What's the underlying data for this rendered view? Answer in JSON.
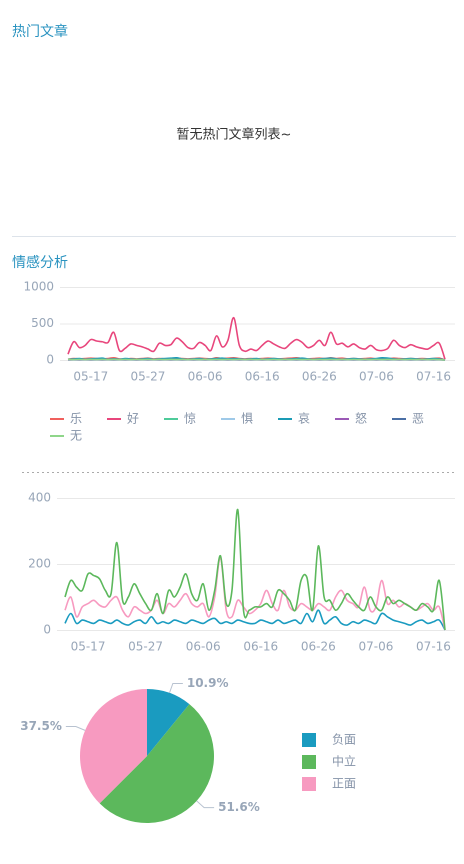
{
  "hot_articles": {
    "title": "热门文章",
    "empty": "暂无热门文章列表~"
  },
  "sentiment": {
    "title": "情感分析"
  },
  "chart_data": [
    {
      "type": "line",
      "categories": [
        null,
        null,
        null,
        null,
        "05-17",
        null,
        null,
        null,
        null,
        null,
        null,
        null,
        null,
        null,
        "05-27",
        null,
        null,
        null,
        null,
        null,
        null,
        null,
        null,
        null,
        "06-06",
        null,
        null,
        null,
        null,
        null,
        null,
        null,
        null,
        null,
        "06-16",
        null,
        null,
        null,
        null,
        null,
        null,
        null,
        null,
        null,
        "06-26",
        null,
        null,
        null,
        null,
        null,
        null,
        null,
        null,
        null,
        "07-06",
        null,
        null,
        null,
        null,
        null,
        null,
        null,
        null,
        null,
        "07-16",
        null,
        null
      ],
      "ylim": [
        0,
        1000
      ],
      "yticks": [
        0,
        500,
        1000
      ],
      "grid": true,
      "legend": "bottom",
      "series": [
        {
          "name": "乐",
          "color": "#f0605d",
          "values": [
            10,
            20,
            15,
            20,
            25,
            20,
            15,
            20,
            30,
            15,
            10,
            20,
            15,
            20,
            25,
            15,
            20,
            15,
            20,
            25,
            20,
            15,
            20,
            25,
            20,
            15,
            30,
            20,
            25,
            30,
            20,
            15,
            20,
            15,
            20,
            25,
            20,
            15,
            20,
            25,
            30,
            20,
            15,
            20,
            25,
            20,
            30,
            20,
            25,
            15,
            20,
            15,
            20,
            25,
            15,
            20,
            15,
            25,
            20,
            15,
            20,
            15,
            20,
            15,
            20,
            25,
            0
          ]
        },
        {
          "name": "好",
          "color": "#e8467c",
          "values": [
            80,
            250,
            170,
            200,
            280,
            260,
            250,
            240,
            380,
            130,
            160,
            220,
            200,
            180,
            150,
            120,
            230,
            200,
            210,
            300,
            250,
            170,
            160,
            240,
            200,
            130,
            330,
            180,
            270,
            580,
            200,
            120,
            150,
            130,
            200,
            260,
            220,
            180,
            160,
            230,
            280,
            240,
            170,
            200,
            270,
            200,
            380,
            220,
            230,
            180,
            220,
            170,
            150,
            200,
            140,
            130,
            160,
            270,
            200,
            170,
            210,
            180,
            160,
            150,
            200,
            230,
            10
          ]
        },
        {
          "name": "惊",
          "color": "#4ecb9a",
          "values": [
            5,
            5,
            5,
            5,
            5,
            5,
            5,
            5,
            5,
            5,
            5,
            5,
            5,
            5,
            5,
            5,
            5,
            5,
            5,
            5,
            5,
            5,
            5,
            5,
            5,
            5,
            5,
            5,
            5,
            5,
            5,
            5,
            5,
            5,
            5,
            5,
            5,
            5,
            5,
            5,
            5,
            5,
            5,
            5,
            5,
            5,
            5,
            5,
            5,
            5,
            5,
            5,
            5,
            5,
            5,
            5,
            5,
            5,
            5,
            5,
            5,
            5,
            5,
            5,
            5,
            5,
            0
          ]
        },
        {
          "name": "惧",
          "color": "#9ec9e8",
          "values": [
            2,
            3,
            2,
            3,
            2,
            3,
            2,
            3,
            2,
            3,
            2,
            3,
            2,
            3,
            2,
            3,
            2,
            3,
            2,
            3,
            2,
            3,
            2,
            3,
            2,
            3,
            2,
            3,
            2,
            3,
            2,
            3,
            2,
            3,
            2,
            3,
            2,
            3,
            2,
            3,
            2,
            3,
            2,
            3,
            2,
            3,
            2,
            3,
            2,
            3,
            2,
            3,
            2,
            3,
            2,
            3,
            2,
            3,
            2,
            3,
            2,
            3,
            2,
            3,
            2,
            3,
            0
          ]
        },
        {
          "name": "哀",
          "color": "#1a9bb5",
          "values": [
            10,
            15,
            20,
            10,
            15,
            20,
            25,
            10,
            15,
            10,
            20,
            15,
            10,
            15,
            20,
            10,
            15,
            20,
            25,
            30,
            15,
            10,
            15,
            20,
            10,
            15,
            20,
            25,
            15,
            20,
            15,
            10,
            15,
            20,
            10,
            15,
            20,
            15,
            10,
            15,
            20,
            25,
            15,
            10,
            15,
            20,
            25,
            15,
            10,
            15,
            20,
            15,
            10,
            15,
            20,
            30,
            25,
            15,
            10,
            15,
            20,
            15,
            10,
            15,
            20,
            15,
            0
          ]
        },
        {
          "name": "怒",
          "color": "#9b59b6",
          "values": [
            3,
            4,
            3,
            4,
            3,
            4,
            3,
            4,
            3,
            4,
            3,
            4,
            3,
            4,
            3,
            4,
            3,
            4,
            3,
            4,
            3,
            4,
            3,
            4,
            3,
            4,
            3,
            4,
            3,
            4,
            3,
            4,
            3,
            4,
            3,
            4,
            3,
            4,
            3,
            4,
            3,
            4,
            3,
            4,
            3,
            4,
            3,
            4,
            3,
            4,
            3,
            4,
            3,
            4,
            3,
            4,
            3,
            4,
            3,
            4,
            3,
            4,
            3,
            4,
            3,
            4,
            0
          ]
        },
        {
          "name": "恶",
          "color": "#4a6fa5",
          "values": [
            5,
            8,
            6,
            8,
            5,
            8,
            6,
            8,
            5,
            8,
            6,
            8,
            5,
            8,
            6,
            8,
            5,
            8,
            6,
            8,
            5,
            8,
            6,
            8,
            5,
            8,
            6,
            8,
            5,
            8,
            6,
            8,
            5,
            8,
            6,
            8,
            5,
            8,
            6,
            8,
            5,
            8,
            6,
            8,
            5,
            8,
            6,
            8,
            5,
            8,
            6,
            8,
            5,
            8,
            6,
            8,
            5,
            8,
            6,
            8,
            5,
            8,
            6,
            8,
            5,
            8,
            0
          ]
        },
        {
          "name": "无",
          "color": "#8fd68a",
          "values": [
            8,
            6,
            8,
            6,
            8,
            6,
            8,
            6,
            8,
            6,
            8,
            6,
            8,
            6,
            8,
            6,
            8,
            6,
            8,
            6,
            8,
            6,
            8,
            6,
            8,
            6,
            8,
            6,
            8,
            6,
            8,
            6,
            8,
            6,
            8,
            6,
            8,
            6,
            8,
            6,
            8,
            6,
            8,
            6,
            8,
            6,
            8,
            6,
            8,
            6,
            8,
            6,
            8,
            6,
            8,
            6,
            8,
            6,
            8,
            6,
            8,
            6,
            8,
            6,
            8,
            6,
            0
          ]
        }
      ]
    },
    {
      "type": "line",
      "categories": [
        null,
        null,
        null,
        null,
        "05-17",
        null,
        null,
        null,
        null,
        null,
        null,
        null,
        null,
        null,
        "05-27",
        null,
        null,
        null,
        null,
        null,
        null,
        null,
        null,
        null,
        "06-06",
        null,
        null,
        null,
        null,
        null,
        null,
        null,
        null,
        null,
        "06-16",
        null,
        null,
        null,
        null,
        null,
        null,
        null,
        null,
        null,
        "06-26",
        null,
        null,
        null,
        null,
        null,
        null,
        null,
        null,
        null,
        "07-06",
        null,
        null,
        null,
        null,
        null,
        null,
        null,
        null,
        null,
        "07-16",
        null,
        null
      ],
      "ylim": [
        0,
        400
      ],
      "yticks": [
        0,
        200,
        400
      ],
      "grid": true,
      "series": [
        {
          "color": "#1a9bc0",
          "values": [
            20,
            50,
            20,
            30,
            25,
            20,
            30,
            25,
            20,
            30,
            20,
            15,
            25,
            30,
            20,
            40,
            20,
            25,
            20,
            30,
            25,
            20,
            30,
            25,
            20,
            30,
            35,
            20,
            25,
            20,
            30,
            25,
            20,
            20,
            30,
            25,
            20,
            30,
            20,
            25,
            30,
            20,
            50,
            25,
            60,
            20,
            30,
            40,
            20,
            15,
            25,
            20,
            30,
            25,
            20,
            50,
            40,
            30,
            25,
            20,
            15,
            25,
            30,
            20,
            25,
            30,
            0
          ]
        },
        {
          "color": "#f79ac0",
          "values": [
            60,
            100,
            40,
            70,
            80,
            90,
            75,
            70,
            90,
            100,
            60,
            40,
            70,
            60,
            50,
            60,
            90,
            50,
            80,
            70,
            90,
            110,
            80,
            70,
            80,
            40,
            100,
            220,
            60,
            40,
            90,
            70,
            50,
            60,
            80,
            120,
            80,
            60,
            120,
            70,
            60,
            80,
            70,
            60,
            80,
            70,
            60,
            100,
            120,
            90,
            80,
            70,
            130,
            60,
            70,
            150,
            80,
            90,
            70,
            80,
            70,
            60,
            70,
            80,
            60,
            70,
            0
          ]
        },
        {
          "color": "#5cb85c",
          "values": [
            100,
            150,
            130,
            120,
            170,
            165,
            155,
            120,
            110,
            265,
            90,
            100,
            140,
            110,
            80,
            60,
            110,
            50,
            120,
            100,
            130,
            170,
            110,
            90,
            140,
            60,
            120,
            225,
            80,
            120,
            365,
            60,
            60,
            70,
            70,
            80,
            70,
            120,
            110,
            90,
            60,
            150,
            160,
            60,
            255,
            100,
            90,
            60,
            80,
            110,
            90,
            70,
            60,
            100,
            70,
            60,
            100,
            80,
            90,
            80,
            70,
            60,
            80,
            70,
            60,
            150,
            0
          ]
        }
      ]
    },
    {
      "type": "pie",
      "categories": [
        "负面",
        "中立",
        "正面"
      ],
      "values": [
        10.9,
        51.6,
        37.5
      ],
      "value_labels": [
        "10.9%",
        "51.6%",
        "37.5%"
      ],
      "colors": [
        "#1a9bc0",
        "#5cb85c",
        "#f79ac0"
      ],
      "legend": "right"
    }
  ]
}
